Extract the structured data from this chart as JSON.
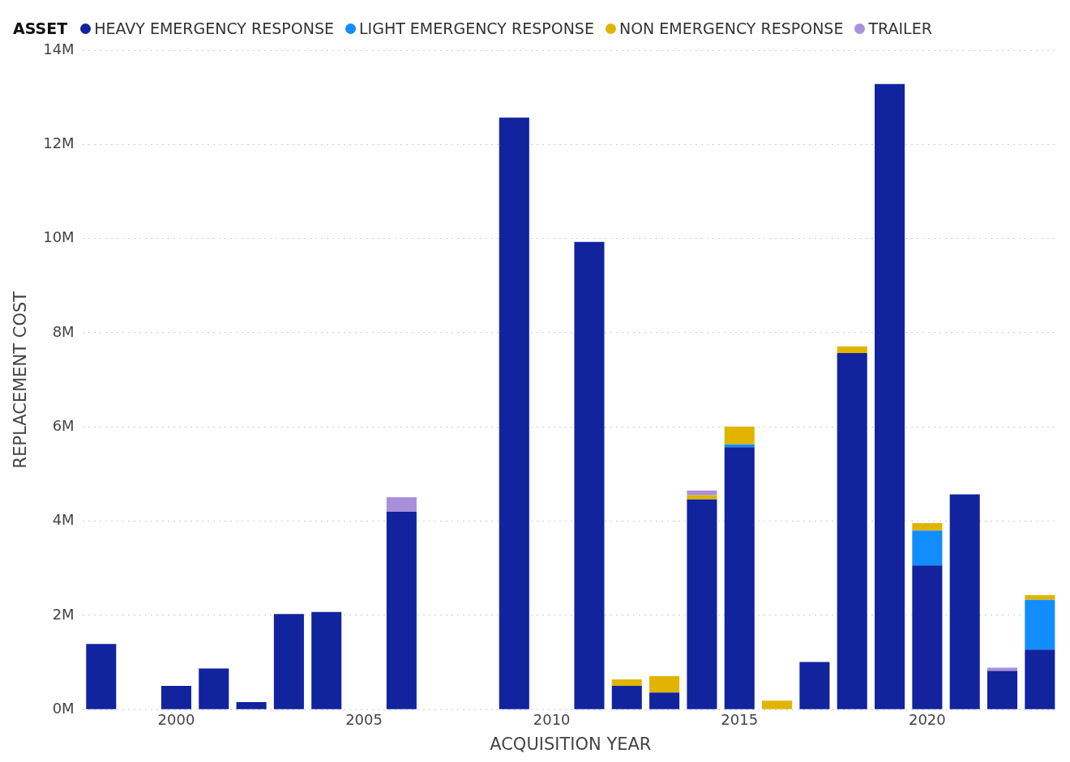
{
  "chart_data": {
    "type": "bar",
    "stacked": true,
    "xlabel": "ACQUISITION YEAR",
    "ylabel": "REPLACEMENT COST",
    "legend_title": "ASSET",
    "legend": "top",
    "grid": "y",
    "x": [
      1998,
      1999,
      2000,
      2001,
      2002,
      2003,
      2004,
      2005,
      2006,
      2007,
      2008,
      2009,
      2010,
      2011,
      2012,
      2013,
      2014,
      2015,
      2016,
      2017,
      2018,
      2019,
      2020,
      2021,
      2022,
      2023
    ],
    "xlim": [
      1997.5,
      2023.5
    ],
    "xticks": [
      2000,
      2005,
      2010,
      2015,
      2020
    ],
    "ylim": [
      0,
      14000000
    ],
    "yticks": [
      {
        "value": 0,
        "label": "0M"
      },
      {
        "value": 2000000,
        "label": "2M"
      },
      {
        "value": 4000000,
        "label": "4M"
      },
      {
        "value": 6000000,
        "label": "6M"
      },
      {
        "value": 8000000,
        "label": "8M"
      },
      {
        "value": 10000000,
        "label": "10M"
      },
      {
        "value": 12000000,
        "label": "12M"
      },
      {
        "value": 14000000,
        "label": "14M"
      }
    ],
    "series": [
      {
        "name": "HEAVY EMERGENCY RESPONSE",
        "color": "#12239e",
        "values": [
          1390000,
          null,
          500000,
          870000,
          160000,
          2030000,
          2070000,
          null,
          4200000,
          null,
          null,
          12570000,
          null,
          9930000,
          500000,
          360000,
          4460000,
          5570000,
          null,
          1010000,
          7570000,
          13280000,
          3060000,
          4570000,
          820000,
          1270000
        ]
      },
      {
        "name": "LIGHT EMERGENCY RESPONSE",
        "color": "#118dff",
        "values": [
          null,
          null,
          null,
          null,
          null,
          null,
          null,
          null,
          null,
          null,
          null,
          null,
          null,
          null,
          null,
          null,
          null,
          60000,
          null,
          null,
          null,
          null,
          740000,
          null,
          null,
          1060000
        ]
      },
      {
        "name": "NON EMERGENCY RESPONSE",
        "color": "#e0b400",
        "values": [
          null,
          null,
          null,
          null,
          null,
          null,
          null,
          null,
          null,
          null,
          null,
          null,
          null,
          null,
          140000,
          350000,
          90000,
          380000,
          190000,
          null,
          140000,
          null,
          160000,
          null,
          null,
          100000
        ]
      },
      {
        "name": "TRAILER",
        "color": "#a98fdc",
        "values": [
          null,
          null,
          null,
          null,
          null,
          null,
          null,
          null,
          310000,
          null,
          null,
          null,
          null,
          null,
          null,
          null,
          100000,
          null,
          null,
          null,
          null,
          null,
          null,
          null,
          70000,
          null
        ]
      }
    ]
  }
}
